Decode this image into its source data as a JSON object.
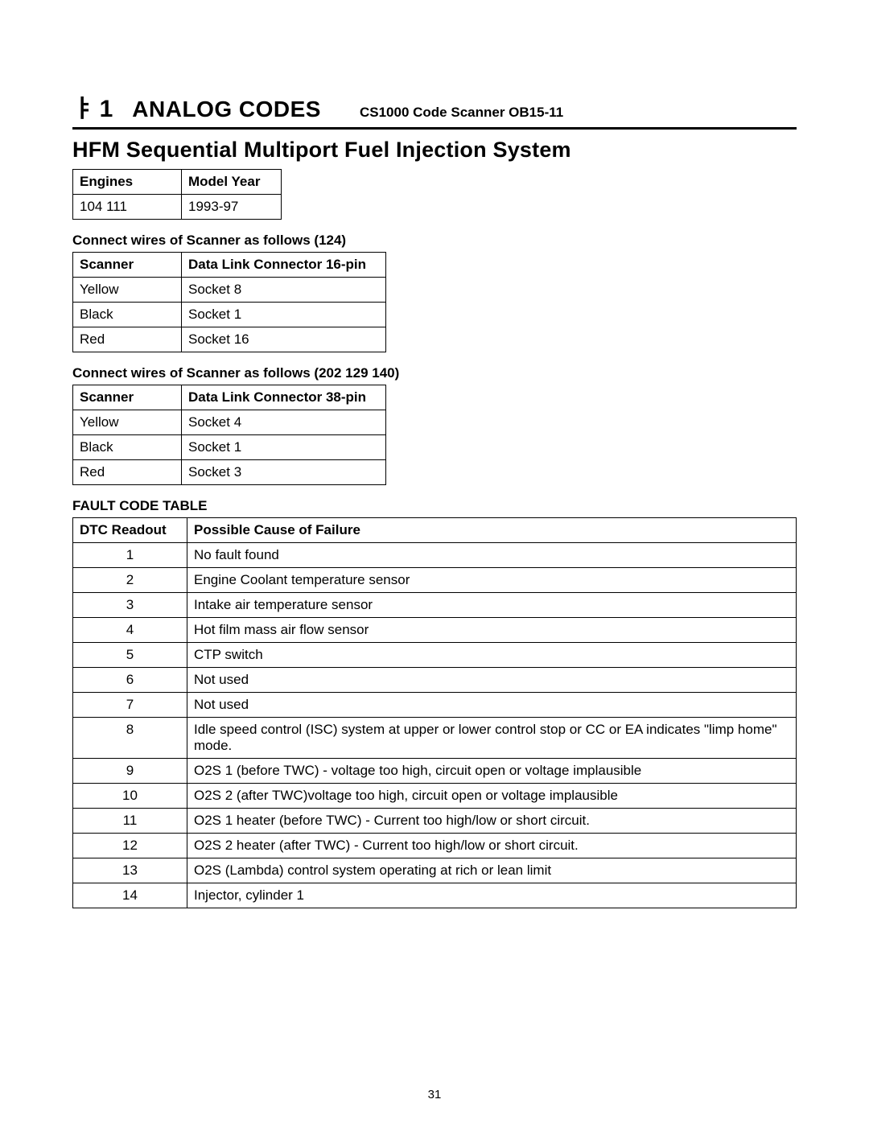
{
  "header": {
    "glyph": "ㅑ",
    "number": "1",
    "title": "ANALOG CODES",
    "subtitle": "CS1000 Code Scanner  OB15-11"
  },
  "system_title": "HFM Sequential Multiport Fuel Injection System",
  "engines_table": {
    "headers": [
      "Engines",
      "Model Year"
    ],
    "rows": [
      [
        "104   111",
        "1993-97"
      ]
    ]
  },
  "conn_124": {
    "label": "Connect wires of Scanner as follows (124)",
    "headers": [
      "Scanner",
      "Data Link Connector 16-pin"
    ],
    "rows": [
      [
        "Yellow",
        "Socket  8"
      ],
      [
        "Black",
        "Socket  1"
      ],
      [
        "Red",
        "Socket  16"
      ]
    ]
  },
  "conn_202": {
    "label": "Connect wires of Scanner as follows (202  129  140)",
    "headers": [
      "Scanner",
      "Data Link Connector 38-pin"
    ],
    "rows": [
      [
        "Yellow",
        "Socket  4"
      ],
      [
        "Black",
        "Socket  1"
      ],
      [
        "Red",
        "Socket  3"
      ]
    ]
  },
  "fault_label": "FAULT CODE TABLE",
  "fault_table": {
    "headers": [
      "DTC Readout",
      "Possible Cause of Failure"
    ],
    "rows": [
      [
        "1",
        "No fault found"
      ],
      [
        "2",
        "Engine Coolant temperature sensor"
      ],
      [
        "3",
        "Intake air temperature sensor"
      ],
      [
        "4",
        "Hot film mass air flow sensor"
      ],
      [
        "5",
        "CTP switch"
      ],
      [
        "6",
        "Not used"
      ],
      [
        "7",
        "Not used"
      ],
      [
        "8",
        "Idle speed control (ISC) system at upper or lower control stop or CC or EA indicates \"limp home\" mode."
      ],
      [
        "9",
        "O2S 1 (before TWC) - voltage too high, circuit open or voltage implausible"
      ],
      [
        "10",
        "O2S 2 (after TWC)voltage too high, circuit open or voltage implausible"
      ],
      [
        "11",
        "O2S 1 heater (before TWC) - Current too high/low or short circuit."
      ],
      [
        "12",
        "O2S 2 heater (after TWC) - Current too high/low or short circuit."
      ],
      [
        "13",
        "O2S (Lambda) control system operating at rich or lean limit"
      ],
      [
        "14",
        "Injector, cylinder 1"
      ]
    ]
  },
  "page_number": "31"
}
